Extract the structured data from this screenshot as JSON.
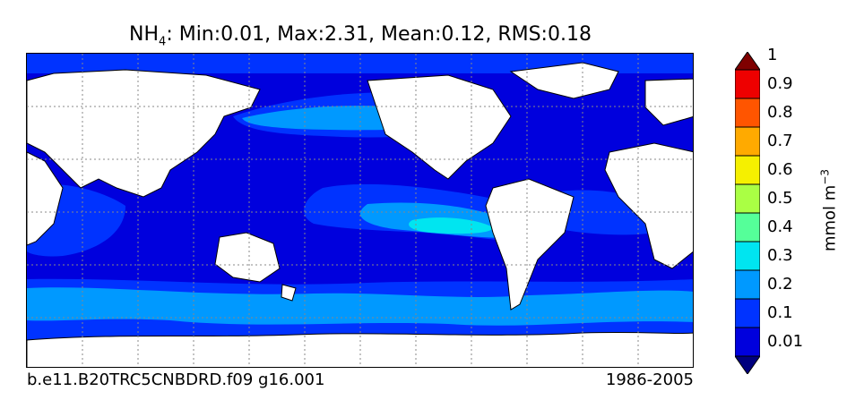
{
  "title": {
    "species": "NH",
    "subscript": "4",
    "stats": ": Min:0.01, Max:2.31, Mean:0.12, RMS:0.18"
  },
  "footer": {
    "run_name": "b.e11.B20TRC5CNBDRD.f09 g16.001",
    "period": "1986-2005"
  },
  "colorbar": {
    "unit_prefix": "mmol m",
    "unit_exponent": "−3",
    "levels": [
      "0.01",
      "0.1",
      "0.2",
      "0.3",
      "0.4",
      "0.5",
      "0.6",
      "0.7",
      "0.8",
      "0.9",
      "1"
    ],
    "colors": [
      "#00007f",
      "#0000dd",
      "#0033ff",
      "#0099ff",
      "#00e5f0",
      "#55ff99",
      "#aaff44",
      "#f5f000",
      "#ffaa00",
      "#ff5500",
      "#ee0000",
      "#7f0000"
    ],
    "extend": "both"
  },
  "map": {
    "projection": "cylindrical",
    "land_color": "#ffffff",
    "grid": "dotted"
  }
}
